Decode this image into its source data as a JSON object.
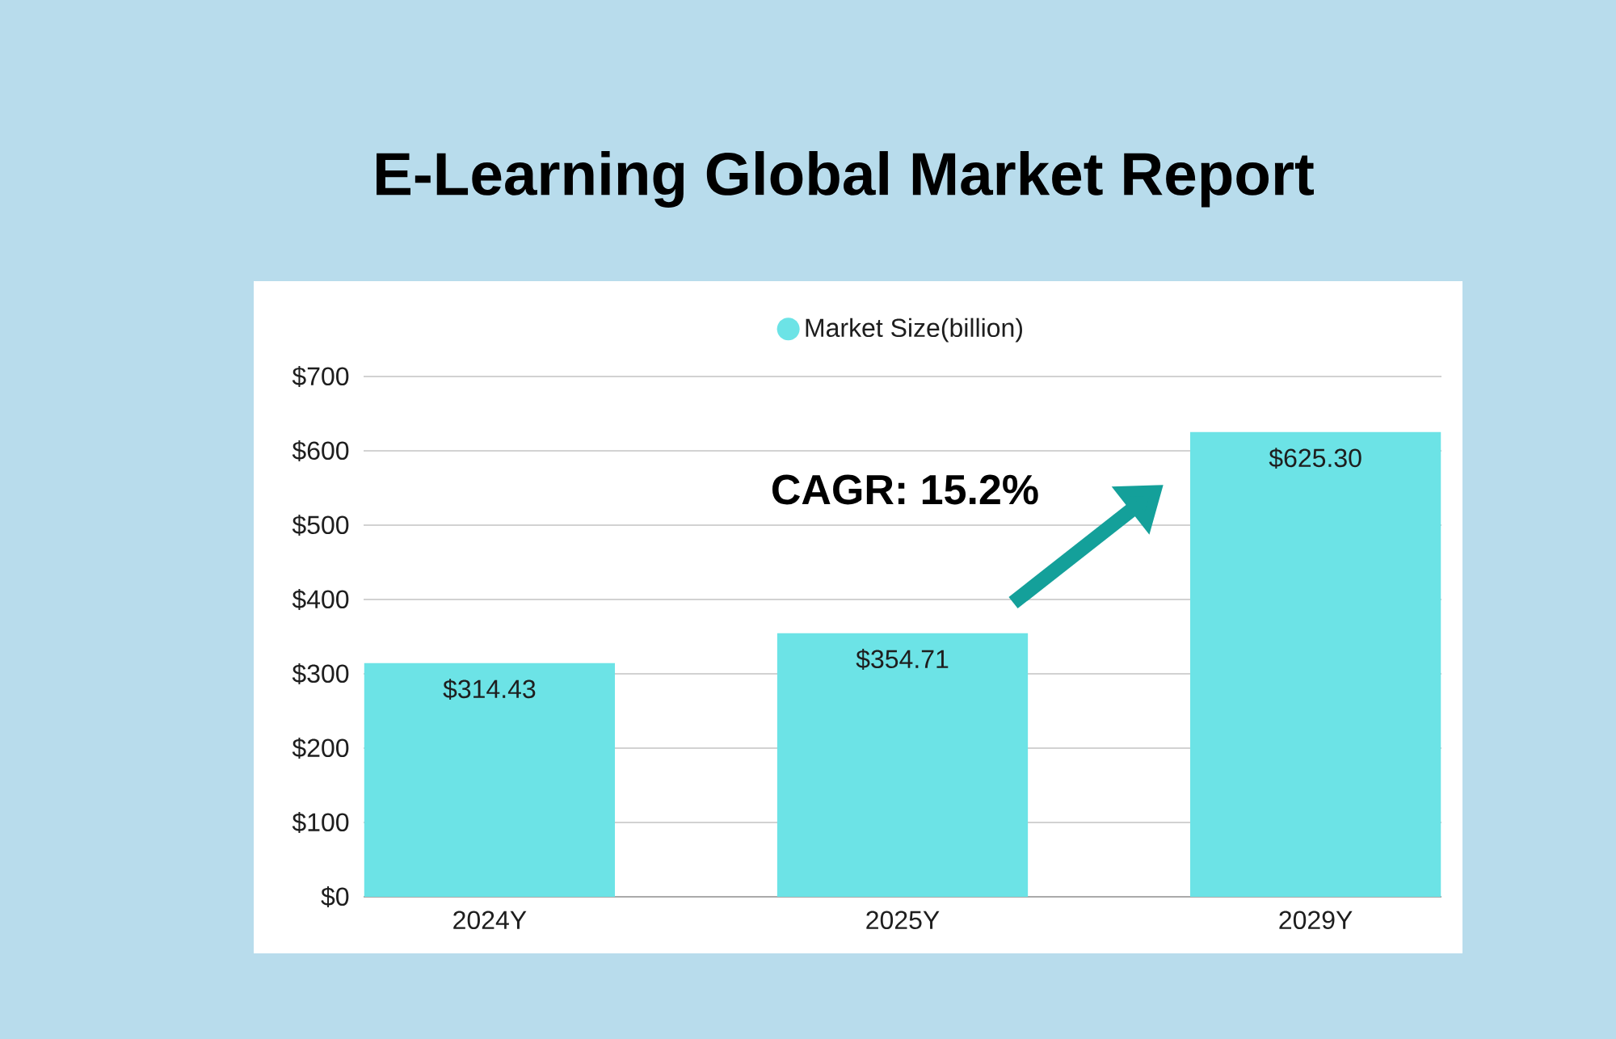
{
  "chart_data": {
    "type": "bar",
    "title": "E-Learning Global Market Report",
    "categories": [
      "2024Y",
      "2025Y",
      "2029Y"
    ],
    "series": [
      {
        "name": "Market Size(billion)",
        "color": "#6ce3e6",
        "values": [
          314.43,
          354.71,
          625.3
        ],
        "value_labels": [
          "$314.43",
          "$354.71",
          "$625.30"
        ]
      }
    ],
    "ylim": [
      0,
      700
    ],
    "yticks": [
      {
        "value": 0,
        "label": "$0"
      },
      {
        "value": 100,
        "label": "$100"
      },
      {
        "value": 200,
        "label": "$200"
      },
      {
        "value": 300,
        "label": "$300"
      },
      {
        "value": 400,
        "label": "$400"
      },
      {
        "value": 500,
        "label": "$500"
      },
      {
        "value": 600,
        "label": "$600"
      },
      {
        "value": 700,
        "label": "$700"
      }
    ],
    "grid": "y",
    "legend": "top",
    "annotations": [
      "CAGR: 15.2%"
    ]
  }
}
